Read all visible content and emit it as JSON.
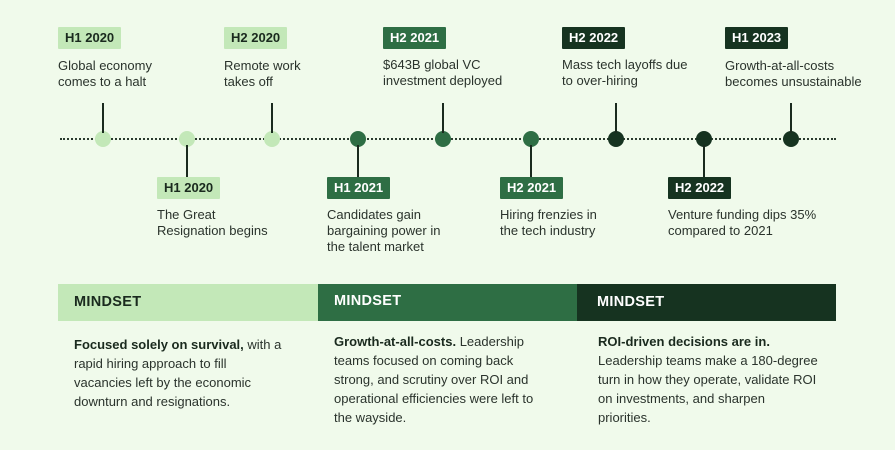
{
  "timeline": {
    "top_events": [
      {
        "period": "H1 2020",
        "text_lines": [
          "Global economy",
          "comes to a halt"
        ],
        "tone": "light"
      },
      {
        "period": "H2 2020",
        "text_lines": [
          "Remote work",
          "takes off"
        ],
        "tone": "light"
      },
      {
        "period": "H2 2021",
        "text_lines": [
          "$643B global VC",
          "investment deployed"
        ],
        "tone": "mid"
      },
      {
        "period": "H2 2022",
        "text_lines": [
          "Mass tech layoffs due",
          "to over-hiring"
        ],
        "tone": "dark"
      },
      {
        "period": "H1 2023",
        "text_lines": [
          "Growth-at-all-costs",
          "becomes unsustainable"
        ],
        "tone": "dark"
      }
    ],
    "bottom_events": [
      {
        "period": "H1 2020",
        "text_lines": [
          "The Great",
          "Resignation begins"
        ],
        "tone": "light"
      },
      {
        "period": "H1 2021",
        "text_lines": [
          "Candidates gain",
          "bargaining power in",
          "the talent market"
        ],
        "tone": "mid"
      },
      {
        "period": "H2 2021",
        "text_lines": [
          "Hiring frenzies in",
          "the tech industry"
        ],
        "tone": "mid"
      },
      {
        "period": "H2 2022",
        "text_lines": [
          "Venture funding dips 35%",
          "compared to 2021"
        ],
        "tone": "dark"
      }
    ]
  },
  "colors": {
    "light": "#c3e8b8",
    "mid": "#2e6e44",
    "dark": "#163320"
  },
  "mindsets": [
    {
      "label": "MINDSET",
      "tone": "light",
      "lead": "Focused solely on survival,",
      "lines": [
        " with a",
        "rapid hiring approach to fill",
        "vacancies left by the economic",
        "downturn and resignations."
      ]
    },
    {
      "label": "MINDSET",
      "tone": "mid",
      "lead": "Growth-at-all-costs.",
      "lines": [
        " Leadership",
        "teams focused on coming back",
        "strong, and scrutiny over ROI and",
        "operational efficiencies were left to",
        "the wayside."
      ]
    },
    {
      "label": "MINDSET",
      "tone": "dark",
      "lead": "ROI-driven decisions are in.",
      "lines": [
        "",
        "Leadership teams make a 180-degree",
        "turn in how they operate, validate ROI",
        "on investments, and sharpen",
        "priorities."
      ]
    }
  ]
}
